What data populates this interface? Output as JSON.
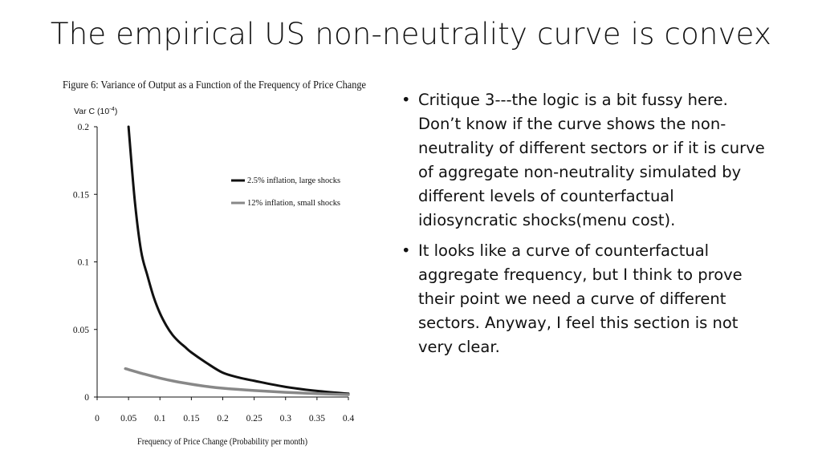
{
  "slide": {
    "title": "The empirical US non-neutrality curve is convex",
    "bullets": [
      "Critique 3---the logic is a bit fussy here. Don’t know if the curve shows the non-neutrality of different sectors or if it is curve of aggregate non-neutrality simulated by different levels of counterfactual idiosyncratic shocks(menu cost).",
      "It looks like a curve of counterfactual aggregate frequency, but I think to prove their point we need a curve of different sectors. Anyway, I feel this section is not very clear."
    ],
    "bullet_symbol": "•"
  },
  "chart_data": {
    "type": "line",
    "title": "Figure 6: Variance of Output as a Function of the Frequency of Price Change",
    "ylabel": "Var C (10",
    "ylabel_exp": "-4",
    "ylabel_close": ")",
    "xlabel": "Frequency of Price  Change (Probability per month)",
    "xlim": [
      0,
      0.4
    ],
    "ylim": [
      0,
      0.2
    ],
    "x_ticks": [
      0,
      0.05,
      0.1,
      0.15,
      0.2,
      0.25,
      0.3,
      0.35,
      0.4
    ],
    "x_tick_labels": [
      "0",
      "0.05",
      "0.1",
      "0.15",
      "0.2",
      "0.25",
      "0.3",
      "0.35",
      "0.4"
    ],
    "y_ticks": [
      0,
      0.05,
      0.1,
      0.15,
      0.2
    ],
    "y_tick_labels": [
      "0",
      "0.05",
      "0.1",
      "0.15",
      "0.2"
    ],
    "legend_position": "right",
    "grid": false,
    "series": [
      {
        "name": "2.5% inflation, large shocks",
        "color": "#111111",
        "x": [
          0.05,
          0.06,
          0.07,
          0.08,
          0.09,
          0.1,
          0.11,
          0.12,
          0.13,
          0.14,
          0.15,
          0.175,
          0.2,
          0.225,
          0.25,
          0.3,
          0.35,
          0.4
        ],
        "y": [
          0.2,
          0.145,
          0.108,
          0.09,
          0.074,
          0.062,
          0.053,
          0.046,
          0.041,
          0.037,
          0.033,
          0.025,
          0.018,
          0.0145,
          0.012,
          0.0075,
          0.0045,
          0.0025
        ]
      },
      {
        "name": "12% inflation, small shocks",
        "color": "#888888",
        "x": [
          0.045,
          0.075,
          0.1,
          0.125,
          0.15,
          0.175,
          0.2,
          0.25,
          0.3,
          0.35,
          0.4
        ],
        "y": [
          0.021,
          0.017,
          0.014,
          0.0115,
          0.0095,
          0.0078,
          0.0065,
          0.0048,
          0.0035,
          0.0025,
          0.0018
        ]
      }
    ]
  }
}
